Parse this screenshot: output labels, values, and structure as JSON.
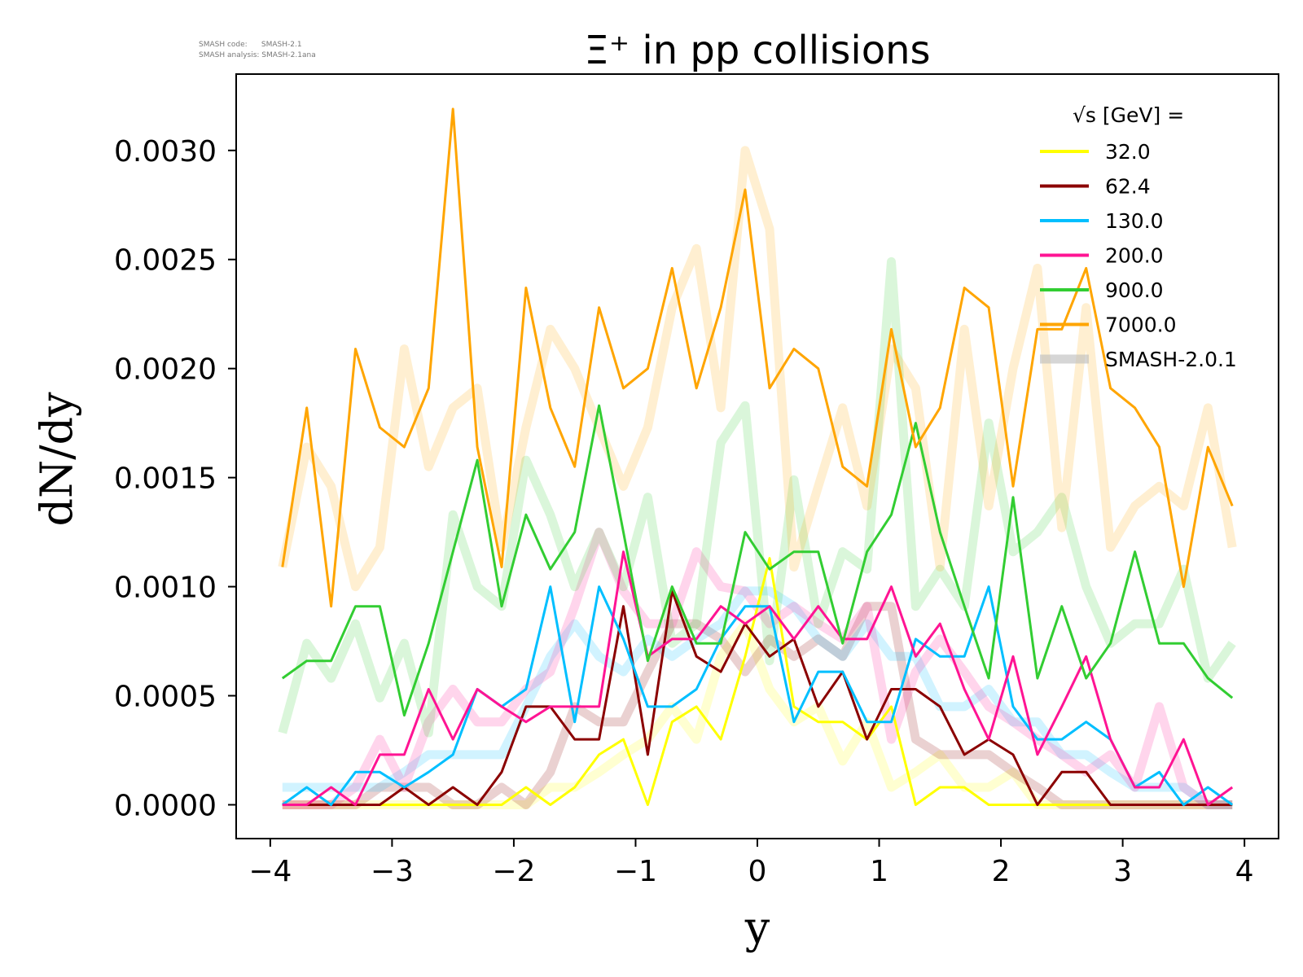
{
  "stamp": {
    "code_line": "SMASH code:      SMASH-2.1",
    "analysis_line": "SMASH analysis: SMASH-2.1ana"
  },
  "chart_data": {
    "type": "line",
    "title": "Ξ⁺ in pp collisions",
    "xlabel": "y",
    "ylabel": "dN/dy",
    "xlim": [
      -4.28,
      4.28
    ],
    "ylim": [
      -0.000155,
      0.00335
    ],
    "xticks": [
      -4,
      -3,
      -2,
      -1,
      0,
      1,
      2,
      3,
      4
    ],
    "xtick_labels": [
      "−4",
      "−3",
      "−2",
      "−1",
      "0",
      "1",
      "2",
      "3",
      "4"
    ],
    "yticks": [
      0,
      0.0005,
      0.001,
      0.0015,
      0.002,
      0.0025,
      0.003
    ],
    "ytick_labels": [
      "0.0000",
      "0.0005",
      "0.0010",
      "0.0015",
      "0.0020",
      "0.0025",
      "0.0030"
    ],
    "legend_title": "√s  [GeV] =",
    "legend_position": "top-right",
    "x": [
      -3.9,
      -3.7,
      -3.5,
      -3.3,
      -3.1,
      -2.9,
      -2.7,
      -2.5,
      -2.3,
      -2.1,
      -1.9,
      -1.7,
      -1.5,
      -1.3,
      -1.1,
      -0.9,
      -0.7,
      -0.5,
      -0.3,
      -0.1,
      0.1,
      0.3,
      0.5,
      0.7,
      0.9,
      1.1,
      1.3,
      1.5,
      1.7,
      1.9,
      2.1,
      2.3,
      2.5,
      2.7,
      2.9,
      3.1,
      3.3,
      3.5,
      3.7,
      3.9
    ],
    "series": [
      {
        "name": "32.0",
        "color": "#ffff00",
        "values": [
          0,
          0,
          0,
          0,
          0,
          0,
          0,
          0,
          0,
          0,
          8e-05,
          0,
          8e-05,
          0.00023,
          0.0003,
          0,
          0.00038,
          0.00045,
          0.0003,
          0.00068,
          0.00113,
          0.00045,
          0.00038,
          0.00038,
          0.0003,
          0.00045,
          0,
          8e-05,
          8e-05,
          0,
          0,
          0,
          0,
          0,
          0,
          0,
          0,
          0,
          0,
          0
        ]
      },
      {
        "name": "62.4",
        "color": "#8b0000",
        "values": [
          0,
          0,
          0,
          0,
          0,
          8e-05,
          0,
          8e-05,
          0,
          0.00015,
          0.00045,
          0.00045,
          0.0003,
          0.0003,
          0.00091,
          0.00023,
          0.00098,
          0.00068,
          0.00061,
          0.00083,
          0.00068,
          0.00076,
          0.00045,
          0.00061,
          0.0003,
          0.00053,
          0.00053,
          0.00045,
          0.00023,
          0.0003,
          0.00023,
          0,
          0.00015,
          0.00015,
          0,
          0,
          0,
          0,
          0,
          0
        ]
      },
      {
        "name": "130.0",
        "color": "#00bfff",
        "values": [
          0,
          8e-05,
          0,
          0.00015,
          0.00015,
          8e-05,
          0.00015,
          0.00023,
          0.00053,
          0.00045,
          0.00053,
          0.001,
          0.00038,
          0.001,
          0.00076,
          0.00045,
          0.00045,
          0.00053,
          0.00076,
          0.00091,
          0.00091,
          0.00038,
          0.00061,
          0.00061,
          0.00038,
          0.00038,
          0.00076,
          0.00068,
          0.00068,
          0.001,
          0.00045,
          0.0003,
          0.0003,
          0.00038,
          0.0003,
          8e-05,
          0.00015,
          0,
          8e-05,
          0
        ]
      },
      {
        "name": "200.0",
        "color": "#ff1493",
        "values": [
          0,
          0,
          8e-05,
          0,
          0.00023,
          0.00023,
          0.00053,
          0.0003,
          0.00053,
          0.00045,
          0.00038,
          0.00045,
          0.00045,
          0.00045,
          0.00116,
          0.00068,
          0.00076,
          0.00076,
          0.00091,
          0.00083,
          0.00091,
          0.00076,
          0.00091,
          0.00076,
          0.00076,
          0.001,
          0.00068,
          0.00083,
          0.00053,
          0.0003,
          0.00068,
          0.00023,
          0.00045,
          0.00068,
          0.0003,
          8e-05,
          8e-05,
          0.0003,
          0,
          8e-05
        ]
      },
      {
        "name": "900.0",
        "color": "#32cd32",
        "values": [
          0.00058,
          0.00066,
          0.00066,
          0.00091,
          0.00091,
          0.00041,
          0.00074,
          0.00116,
          0.00158,
          0.00091,
          0.00133,
          0.00108,
          0.00125,
          0.00183,
          0.00125,
          0.00066,
          0.001,
          0.00074,
          0.00074,
          0.00125,
          0.00108,
          0.00116,
          0.00116,
          0.00074,
          0.00116,
          0.00133,
          0.00175,
          0.00125,
          0.00091,
          0.00058,
          0.00141,
          0.00058,
          0.00091,
          0.00058,
          0.00074,
          0.00116,
          0.00074,
          0.00074,
          0.00058,
          0.00049
        ]
      },
      {
        "name": "7000.0",
        "color": "#ffa500",
        "values": [
          0.00109,
          0.00182,
          0.00091,
          0.00209,
          0.00173,
          0.00164,
          0.00191,
          0.00319,
          0.00164,
          0.00109,
          0.00237,
          0.00182,
          0.00155,
          0.00228,
          0.00191,
          0.002,
          0.00246,
          0.00191,
          0.00228,
          0.00282,
          0.00191,
          0.00209,
          0.002,
          0.00155,
          0.00146,
          0.00218,
          0.00164,
          0.00182,
          0.00237,
          0.00228,
          0.00146,
          0.00218,
          0.00218,
          0.00246,
          0.00191,
          0.00182,
          0.00164,
          0.001,
          0.00164,
          0.00137
        ]
      }
    ],
    "reference_label": "SMASH-2.0.1",
    "reference_series": [
      {
        "name": "32.0",
        "values": [
          0,
          0,
          0,
          0,
          0,
          0,
          0,
          0,
          0,
          0,
          0,
          8e-05,
          8e-05,
          0.00015,
          0.00023,
          0.0003,
          0.00045,
          0.0003,
          0.00068,
          0.00083,
          0.00053,
          0.00038,
          0.00045,
          0.0002,
          0.00038,
          8e-05,
          0.00015,
          0.00023,
          8e-05,
          8e-05,
          0.00015,
          0,
          0,
          0,
          0,
          0,
          0,
          0,
          0,
          0
        ]
      },
      {
        "name": "62.4",
        "values": [
          0,
          0,
          0,
          0,
          8e-05,
          8e-05,
          8e-05,
          0,
          0,
          8e-05,
          0,
          0.00015,
          0.00045,
          0.00038,
          0.00038,
          0.00061,
          0.00083,
          0.00083,
          0.00076,
          0.00061,
          0.00076,
          0.00068,
          0.00076,
          0.00068,
          0.00091,
          0.00091,
          0.0003,
          0.00023,
          0.00023,
          0.00023,
          0.00015,
          8e-05,
          0,
          0,
          0,
          0,
          0,
          0,
          0,
          0
        ]
      },
      {
        "name": "130.0",
        "values": [
          8e-05,
          8e-05,
          8e-05,
          8e-05,
          8e-05,
          0.00015,
          0.00023,
          0.00023,
          0.00023,
          0.00023,
          0.00045,
          0.00068,
          0.00083,
          0.00068,
          0.00061,
          0.00076,
          0.00068,
          0.00076,
          0.00083,
          0.00098,
          0.00098,
          0.00091,
          0.00076,
          0.00068,
          0.00083,
          0.00068,
          0.00068,
          0.00045,
          0.00045,
          0.00053,
          0.00038,
          0.00038,
          0.00023,
          0.00023,
          0.00015,
          8e-05,
          8e-05,
          8e-05,
          0,
          0
        ]
      },
      {
        "name": "200.0",
        "values": [
          0,
          0,
          0,
          8e-05,
          0.0003,
          8e-05,
          0.00038,
          0.00053,
          0.00038,
          0.00038,
          0.00053,
          0.00061,
          0.00091,
          0.00125,
          0.00098,
          0.00083,
          0.00083,
          0.00116,
          0.001,
          0.00098,
          0.00083,
          0.00091,
          0.00083,
          0.00076,
          0.00091,
          0.0003,
          0.00061,
          0.00076,
          0.00061,
          0.00045,
          0.00038,
          0.0003,
          0.00023,
          0.00015,
          0.00023,
          8e-05,
          0.00045,
          8e-05,
          0,
          0
        ]
      },
      {
        "name": "900.0",
        "values": [
          0.00033,
          0.00074,
          0.00058,
          0.00083,
          0.00049,
          0.00074,
          0.00033,
          0.00133,
          0.001,
          0.00091,
          0.00158,
          0.00133,
          0.001,
          0.00125,
          0.001,
          0.00141,
          0.00074,
          0.00083,
          0.00166,
          0.00183,
          0.00066,
          0.00149,
          0.00083,
          0.00116,
          0.00108,
          0.00249,
          0.00091,
          0.00108,
          0.00091,
          0.00175,
          0.00116,
          0.00125,
          0.00141,
          0.001,
          0.00074,
          0.00083,
          0.00083,
          0.00108,
          0.00058,
          0.00074
        ]
      },
      {
        "name": "7000.0",
        "values": [
          0.00109,
          0.00164,
          0.00146,
          0.001,
          0.00118,
          0.00209,
          0.00155,
          0.00182,
          0.00191,
          0.00118,
          0.00173,
          0.00218,
          0.002,
          0.00173,
          0.00146,
          0.00173,
          0.00228,
          0.00255,
          0.00182,
          0.003,
          0.00264,
          0.00109,
          0.00146,
          0.00182,
          0.00137,
          0.00209,
          0.00191,
          0.00109,
          0.00218,
          0.00137,
          0.002,
          0.00246,
          0.00127,
          0.00228,
          0.00118,
          0.00137,
          0.00146,
          0.00137,
          0.00182,
          0.00118
        ]
      }
    ]
  }
}
